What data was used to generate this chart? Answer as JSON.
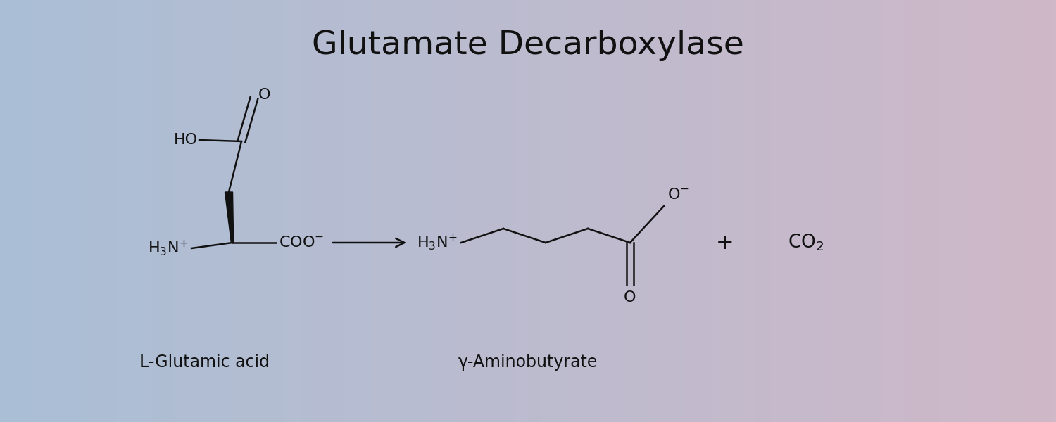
{
  "title": "Glutamate Decarboxylase",
  "title_fontsize": 34,
  "background_left": "#aabfd6",
  "background_right": "#cfb8c8",
  "label_glutamic": "L-Glutamic acid",
  "label_gaba": "γ-Aminobutyrate",
  "label_fontsize": 17,
  "line_color": "#111111",
  "line_width": 1.8,
  "text_color": "#111111",
  "chem_fontsize": 16,
  "figsize": [
    15.0,
    6.0
  ],
  "dpi": 100
}
